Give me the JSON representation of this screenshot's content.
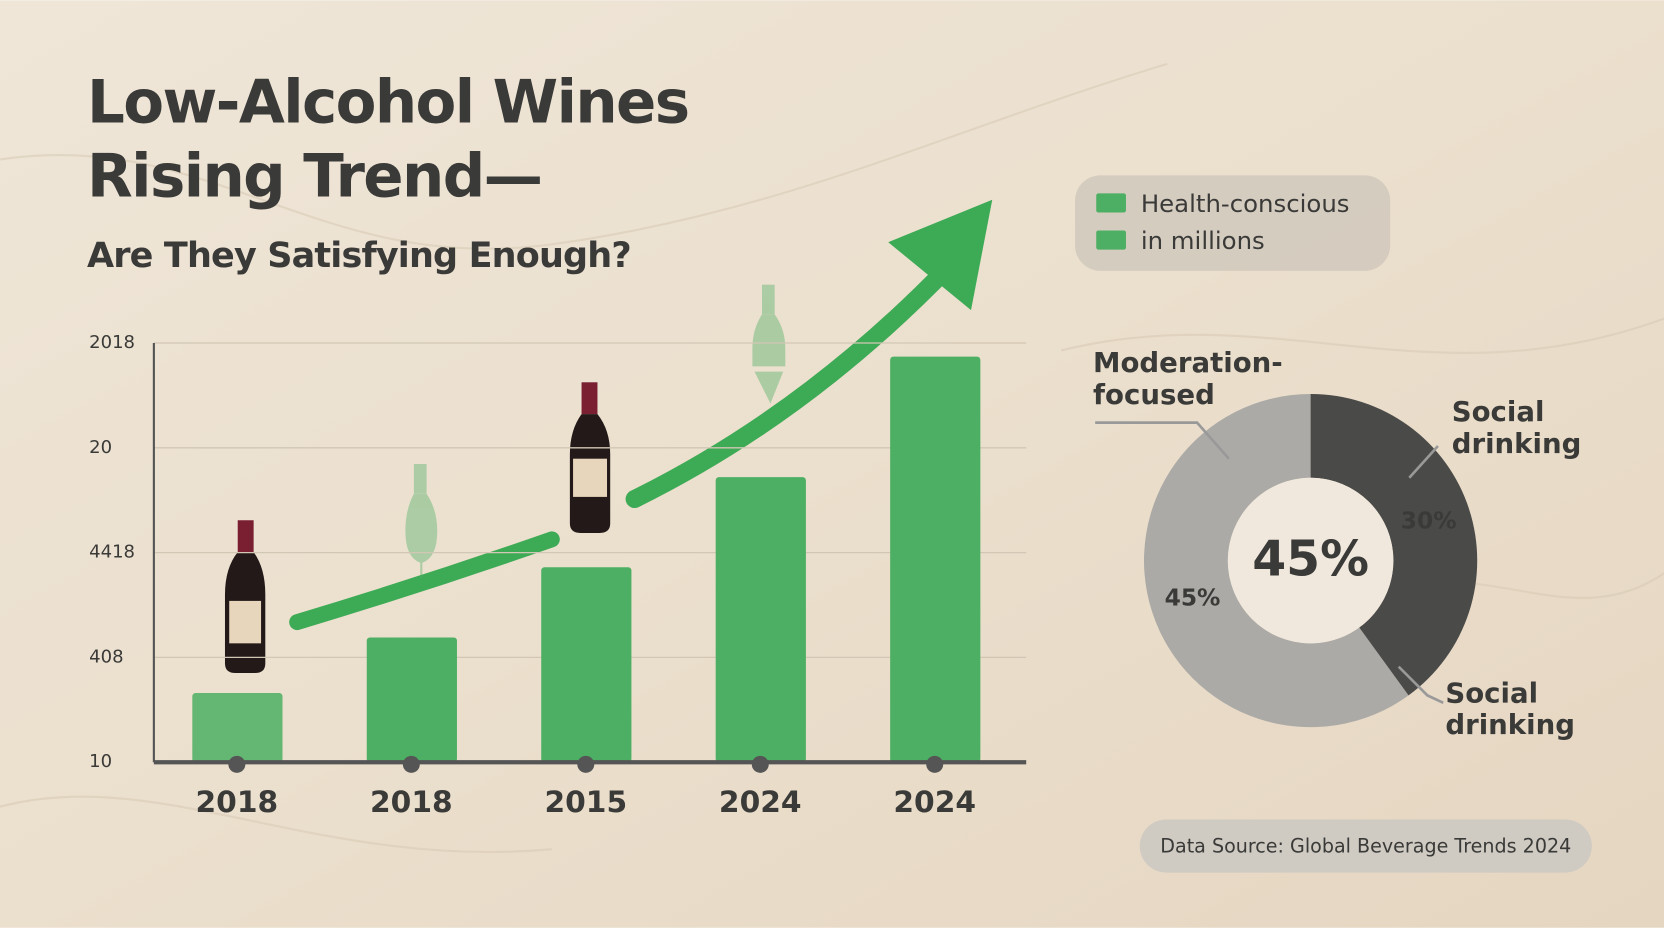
{
  "title": "Low-Alcohol Wines\nRising Trend—",
  "subtitle": "Are They Satisfying Enough?",
  "source": "Data Source: Global Beverage Trends 2024",
  "chart_data": [
    {
      "type": "bar",
      "categories": [
        "2018",
        "2018",
        "2015",
        "2024",
        "2024"
      ],
      "values": [
        0.66,
        1.19,
        1.86,
        2.72,
        3.87
      ],
      "color": "#4caf63",
      "legend": [
        "Health-conscious",
        "in millions"
      ],
      "ylim": [
        0,
        4
      ],
      "yticks": [
        {
          "value": 0,
          "label": "10"
        },
        {
          "value": 1,
          "label": "408"
        },
        {
          "value": 2,
          "label": "4418"
        },
        {
          "value": 3,
          "label": "20"
        },
        {
          "value": 4,
          "label": "2018"
        }
      ],
      "grid": true
    },
    {
      "type": "pie",
      "categories": [
        "Moderation-\nfocused",
        "Social\ndrinking"
      ],
      "values": [
        45,
        30
      ],
      "value_labels": [
        "45%",
        "30%"
      ],
      "colors": [
        "#abaaa6",
        "#4a4a49"
      ],
      "center_label": "45%",
      "annotations": [
        "Social\ndrinking"
      ]
    }
  ]
}
